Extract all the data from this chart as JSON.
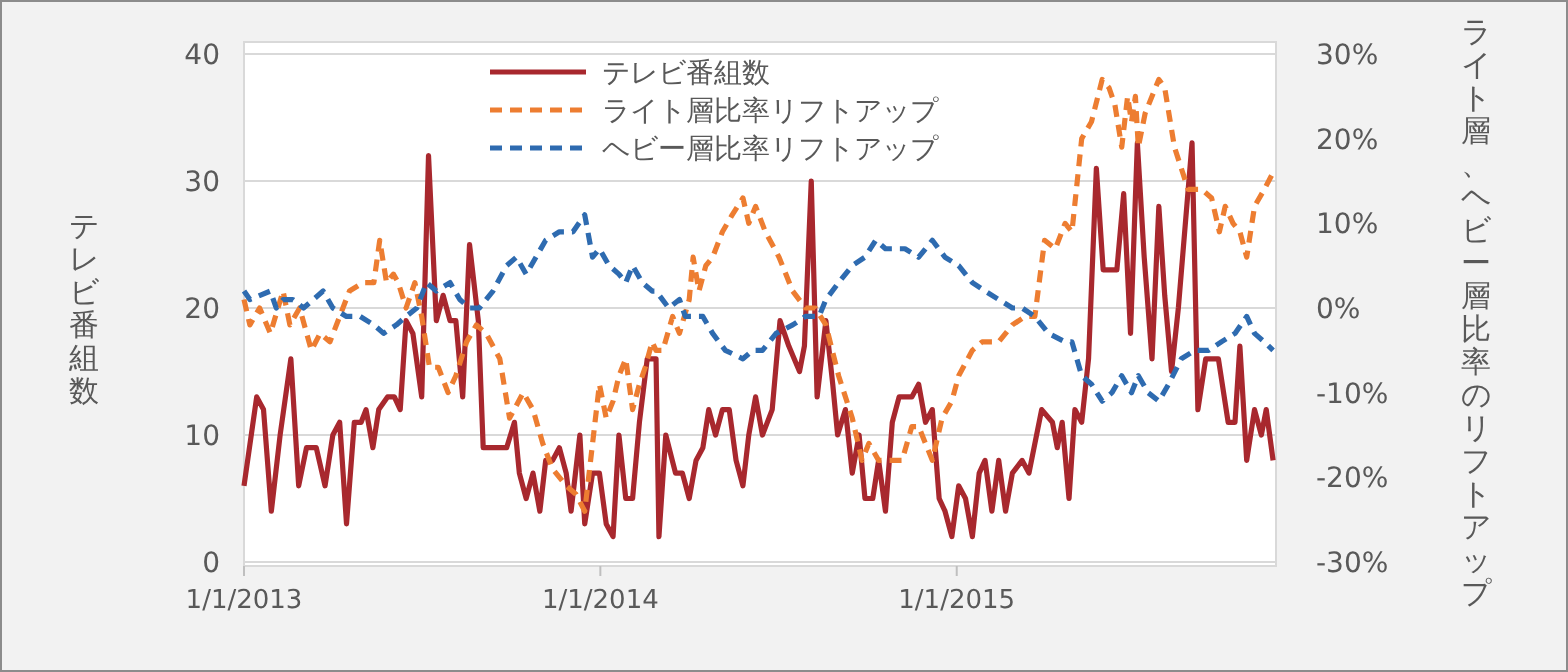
{
  "chart_data": {
    "type": "line",
    "ylabel": "テレビ番組数",
    "y2label": "ライト層、ヘビー層比率のリフトアップ",
    "xlim": [
      "2013-01-01",
      "2015-11-24"
    ],
    "xticks": [
      {
        "value": "2013-01-01",
        "label": "1/1/2013"
      },
      {
        "value": "2014-01-01",
        "label": "1/1/2014"
      },
      {
        "value": "2015-01-01",
        "label": "1/1/2015"
      }
    ],
    "ylim": [
      0,
      40
    ],
    "yticks": [
      0,
      10,
      20,
      30,
      40
    ],
    "y2lim": [
      -30,
      30
    ],
    "y2ticks": [
      {
        "value": -30,
        "label": "-30%"
      },
      {
        "value": -20,
        "label": "-20%"
      },
      {
        "value": -10,
        "label": "-10%"
      },
      {
        "value": 0,
        "label": "0%"
      },
      {
        "value": 10,
        "label": "10%"
      },
      {
        "value": 20,
        "label": "20%"
      },
      {
        "value": 30,
        "label": "30%"
      }
    ],
    "grid": "y",
    "legend": "top",
    "series": [
      {
        "name": "テレビ番組数",
        "color": "#a8282e",
        "line_style": "solid",
        "x": [
          "2013-01-01",
          "2013-01-14",
          "2013-01-21",
          "2013-01-29",
          "2013-02-07",
          "2013-02-18",
          "2013-02-26",
          "2013-03-06",
          "2013-03-16",
          "2013-03-25",
          "2013-04-02",
          "2013-04-09",
          "2013-04-16",
          "2013-04-24",
          "2013-05-01",
          "2013-05-06",
          "2013-05-13",
          "2013-05-19",
          "2013-05-28",
          "2013-06-04",
          "2013-06-10",
          "2013-06-16",
          "2013-06-23",
          "2013-07-02",
          "2013-07-09",
          "2013-07-17",
          "2013-07-24",
          "2013-07-31",
          "2013-08-06",
          "2013-08-13",
          "2013-08-20",
          "2013-08-29",
          "2013-09-03",
          "2013-09-13",
          "2013-09-27",
          "2013-10-05",
          "2013-10-10",
          "2013-10-17",
          "2013-10-24",
          "2013-10-31",
          "2013-11-06",
          "2013-11-13",
          "2013-11-20",
          "2013-11-27",
          "2013-12-02",
          "2013-12-11",
          "2013-12-16",
          "2013-12-24",
          "2013-12-31",
          "2014-01-07",
          "2014-01-14",
          "2014-01-20",
          "2014-01-27",
          "2014-02-03",
          "2014-02-10",
          "2014-02-18",
          "2014-02-27",
          "2014-03-02",
          "2014-03-09",
          "2014-03-19",
          "2014-03-26",
          "2014-04-02",
          "2014-04-09",
          "2014-04-16",
          "2014-04-22",
          "2014-04-29",
          "2014-05-06",
          "2014-05-13",
          "2014-05-20",
          "2014-05-27",
          "2014-06-02",
          "2014-06-09",
          "2014-06-16",
          "2014-06-26",
          "2014-07-04",
          "2014-07-13",
          "2014-07-24",
          "2014-07-29",
          "2014-08-05",
          "2014-08-11",
          "2014-08-20",
          "2014-08-27",
          "2014-09-01",
          "2014-09-09",
          "2014-09-16",
          "2014-09-23",
          "2014-09-29",
          "2014-10-07",
          "2014-10-13",
          "2014-10-20",
          "2014-10-27",
          "2014-11-03",
          "2014-11-09",
          "2014-11-16",
          "2014-11-23",
          "2014-11-30",
          "2014-12-07",
          "2014-12-14",
          "2014-12-20",
          "2014-12-27",
          "2015-01-03",
          "2015-01-10",
          "2015-01-17",
          "2015-01-24",
          "2015-01-30",
          "2015-02-06",
          "2015-02-13",
          "2015-02-20",
          "2015-02-27",
          "2015-03-09",
          "2015-03-16",
          "2015-03-29",
          "2015-04-09",
          "2015-04-14",
          "2015-04-19",
          "2015-04-26",
          "2015-05-02",
          "2015-05-09",
          "2015-05-16",
          "2015-05-24",
          "2015-05-31",
          "2015-06-09",
          "2015-06-14",
          "2015-06-21",
          "2015-06-28",
          "2015-07-05",
          "2015-07-12",
          "2015-07-20",
          "2015-07-27",
          "2015-08-02",
          "2015-08-09",
          "2015-08-16",
          "2015-08-30",
          "2015-09-05",
          "2015-09-13",
          "2015-09-26",
          "2015-10-06",
          "2015-10-13",
          "2015-10-18",
          "2015-10-25",
          "2015-11-02",
          "2015-11-09",
          "2015-11-14",
          "2015-11-21"
        ],
        "values": [
          6,
          13,
          12,
          4,
          10,
          16,
          6,
          9,
          9,
          6,
          10,
          11,
          3,
          11,
          11,
          12,
          9,
          12,
          13,
          13,
          12,
          19,
          18,
          13,
          32,
          19,
          21,
          19,
          19,
          13,
          25,
          19,
          9,
          9,
          9,
          11,
          7,
          5,
          7,
          4,
          8,
          8,
          9,
          7,
          4,
          10,
          3,
          7,
          7,
          3,
          2,
          10,
          5,
          5,
          11,
          16,
          16,
          2,
          10,
          7,
          7,
          5,
          8,
          9,
          12,
          10,
          12,
          12,
          8,
          6,
          10,
          13,
          10,
          12,
          19,
          17,
          15,
          17,
          30,
          13,
          19,
          14,
          10,
          12,
          7,
          10,
          5,
          5,
          8,
          4,
          11,
          13,
          13,
          13,
          14,
          11,
          12,
          5,
          4,
          2,
          6,
          5,
          2,
          7,
          8,
          4,
          8,
          4,
          7,
          8,
          7,
          12,
          11,
          9,
          11,
          5,
          12,
          11,
          16,
          31,
          23,
          23,
          23,
          29,
          18,
          33,
          24,
          16,
          28,
          21,
          15,
          20,
          33,
          12,
          16,
          16,
          11,
          11,
          17,
          8,
          12,
          10,
          12,
          8
        ]
      },
      {
        "name": "ライト層比率リフトアップ",
        "color": "#ed7d31",
        "line_style": "dashed",
        "axis": "y2",
        "x": [
          "2013-01-01",
          "2013-01-07",
          "2013-01-17",
          "2013-01-28",
          "2013-02-10",
          "2013-02-17",
          "2013-02-27",
          "2013-03-11",
          "2013-03-20",
          "2013-03-30",
          "2013-04-09",
          "2013-04-19",
          "2013-05-03",
          "2013-05-14",
          "2013-05-20",
          "2013-05-27",
          "2013-06-03",
          "2013-06-08",
          "2013-06-16",
          "2013-06-25",
          "2013-07-02",
          "2013-07-10",
          "2013-07-19",
          "2013-07-29",
          "2013-08-06",
          "2013-08-17",
          "2013-08-27",
          "2013-09-06",
          "2013-09-20",
          "2013-09-30",
          "2013-10-14",
          "2013-10-24",
          "2013-11-03",
          "2013-11-13",
          "2013-11-27",
          "2013-12-07",
          "2013-12-16",
          "2013-12-24",
          "2013-12-31",
          "2014-01-07",
          "2014-01-14",
          "2014-01-20",
          "2014-01-27",
          "2014-02-03",
          "2014-02-10",
          "2014-02-16",
          "2014-02-23",
          "2014-02-27",
          "2014-03-06",
          "2014-03-16",
          "2014-03-23",
          "2014-04-02",
          "2014-04-06",
          "2014-04-12",
          "2014-04-19",
          "2014-04-26",
          "2014-05-06",
          "2014-05-16",
          "2014-05-27",
          "2014-06-02",
          "2014-06-09",
          "2014-06-19",
          "2014-07-03",
          "2014-07-17",
          "2014-07-30",
          "2014-08-09",
          "2014-08-20",
          "2014-09-02",
          "2014-09-16",
          "2014-09-26",
          "2014-10-03",
          "2014-10-13",
          "2014-10-27",
          "2014-11-06",
          "2014-11-16",
          "2014-11-23",
          "2014-11-30",
          "2014-12-07",
          "2014-12-17",
          "2014-12-27",
          "2015-01-03",
          "2015-01-17",
          "2015-01-27",
          "2015-02-09",
          "2015-02-13",
          "2015-02-27",
          "2015-03-12",
          "2015-03-22",
          "2015-04-01",
          "2015-04-12",
          "2015-04-22",
          "2015-04-29",
          "2015-05-09",
          "2015-05-19",
          "2015-05-30",
          "2015-06-06",
          "2015-06-12",
          "2015-06-19",
          "2015-06-25",
          "2015-06-29",
          "2015-07-03",
          "2015-07-06",
          "2015-07-13",
          "2015-07-27",
          "2015-08-02",
          "2015-08-12",
          "2015-08-26",
          "2015-09-09",
          "2015-09-19",
          "2015-09-27",
          "2015-10-03",
          "2015-10-11",
          "2015-10-18",
          "2015-10-25",
          "2015-11-02",
          "2015-11-12",
          "2015-11-21"
        ],
        "values": [
          1,
          -2,
          0,
          -3,
          2,
          -2,
          0,
          -5,
          -3,
          -4,
          -1,
          2,
          3,
          3,
          8,
          3,
          4,
          3,
          0,
          3,
          -1,
          -7,
          -7,
          -10,
          -8,
          -4,
          -2,
          -3,
          -6,
          -13,
          -10,
          -12,
          -16,
          -19,
          -21,
          -22,
          -24,
          -16,
          -9,
          -13,
          -11,
          -8,
          -6,
          -12,
          -9,
          -7,
          -4,
          -5,
          -5,
          -1,
          -3,
          1,
          6,
          2,
          5,
          6,
          9,
          11,
          13,
          10,
          12,
          9,
          6,
          2,
          0,
          0,
          -2,
          -8,
          -13,
          -18,
          -16,
          -18,
          -18,
          -18,
          -14,
          -14,
          -16,
          -18,
          -13,
          -11,
          -8,
          -5,
          -4,
          -4,
          -4,
          -2,
          -1,
          -1,
          8,
          7,
          10,
          9,
          20,
          22,
          27,
          26,
          24,
          19,
          25,
          22,
          25,
          19,
          23,
          27,
          26,
          19,
          14,
          14,
          13,
          9,
          12,
          10,
          9,
          6,
          12,
          14,
          16
        ]
      },
      {
        "name": "ヘビー層比率リフトアップ",
        "color": "#2e6bb0",
        "line_style": "dashed",
        "axis": "y2",
        "x": [
          "2013-01-01",
          "2013-01-07",
          "2013-01-28",
          "2013-02-03",
          "2013-02-10",
          "2013-02-20",
          "2013-03-03",
          "2013-03-13",
          "2013-03-23",
          "2013-04-02",
          "2013-04-16",
          "2013-04-30",
          "2013-05-14",
          "2013-05-24",
          "2013-06-06",
          "2013-06-16",
          "2013-06-27",
          "2013-07-07",
          "2013-07-17",
          "2013-07-31",
          "2013-08-10",
          "2013-08-20",
          "2013-08-30",
          "2013-09-13",
          "2013-09-27",
          "2013-10-07",
          "2013-10-17",
          "2013-10-27",
          "2013-11-06",
          "2013-11-20",
          "2013-12-04",
          "2013-12-16",
          "2013-12-24",
          "2013-12-31",
          "2014-01-10",
          "2014-01-20",
          "2014-01-27",
          "2014-02-03",
          "2014-02-13",
          "2014-02-23",
          "2014-02-27",
          "2014-03-12",
          "2014-03-23",
          "2014-03-29",
          "2014-04-06",
          "2014-04-16",
          "2014-04-26",
          "2014-05-09",
          "2014-05-27",
          "2014-06-06",
          "2014-06-16",
          "2014-06-30",
          "2014-07-17",
          "2014-07-30",
          "2014-08-13",
          "2014-08-20",
          "2014-09-02",
          "2014-09-16",
          "2014-09-29",
          "2014-10-10",
          "2014-10-20",
          "2014-10-30",
          "2014-11-09",
          "2014-11-23",
          "2014-12-07",
          "2014-12-20",
          "2015-01-03",
          "2015-01-17",
          "2015-01-30",
          "2015-02-13",
          "2015-02-27",
          "2015-03-09",
          "2015-03-22",
          "2015-04-05",
          "2015-04-22",
          "2015-04-29",
          "2015-05-09",
          "2015-05-19",
          "2015-05-30",
          "2015-06-09",
          "2015-06-19",
          "2015-06-29",
          "2015-07-06",
          "2015-07-16",
          "2015-07-27",
          "2015-08-06",
          "2015-08-19",
          "2015-09-02",
          "2015-09-16",
          "2015-09-29",
          "2015-10-13",
          "2015-10-25",
          "2015-11-02",
          "2015-11-12",
          "2015-11-21"
        ],
        "values": [
          2,
          1,
          2,
          0,
          1,
          1,
          0,
          1,
          2,
          0,
          -1,
          -1,
          -2,
          -3,
          -2,
          -1,
          0,
          3,
          2,
          3,
          1,
          0,
          0,
          2,
          5,
          6,
          4,
          6,
          8,
          9,
          9,
          11,
          6,
          7,
          5,
          4,
          3,
          5,
          3,
          2,
          2,
          0,
          1,
          -1,
          -1,
          -1,
          -3,
          -5,
          -6,
          -5,
          -5,
          -3,
          -2,
          -1,
          -1,
          1,
          3,
          5,
          6,
          8,
          7,
          7,
          7,
          6,
          8,
          6,
          5,
          3,
          2,
          1,
          0,
          0,
          -1,
          -3,
          -4,
          -4,
          -8,
          -9,
          -11,
          -10,
          -8,
          -10,
          -8,
          -10,
          -11,
          -9,
          -6,
          -5,
          -5,
          -4,
          -3,
          -1,
          -3,
          -4,
          -5
        ]
      }
    ]
  }
}
